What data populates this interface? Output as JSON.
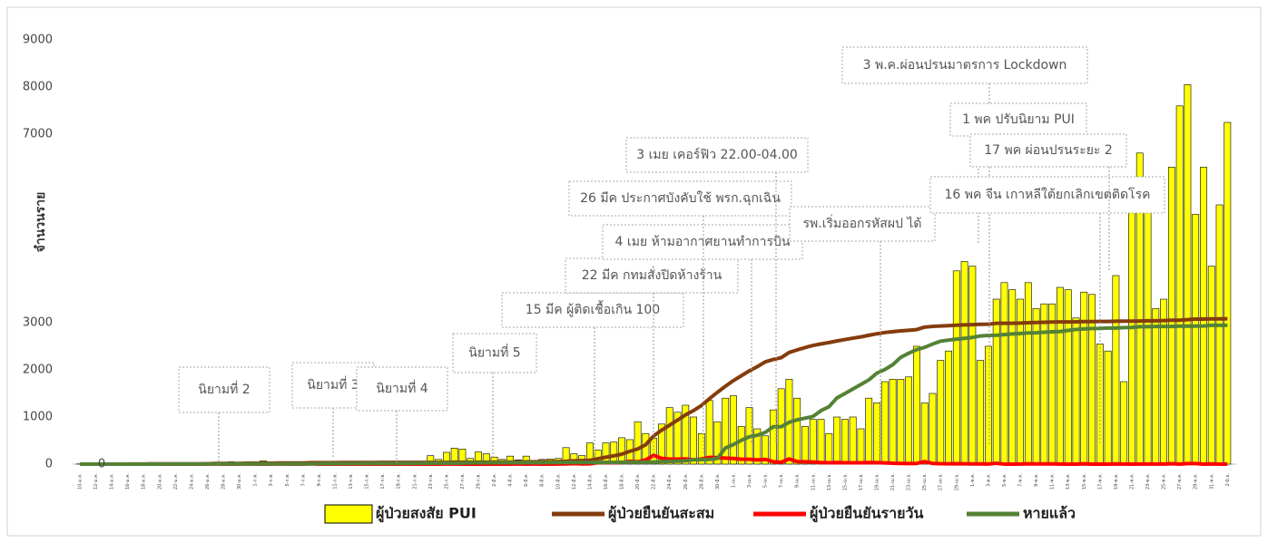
{
  "chart_data": {
    "type": "bar",
    "y_label": "จำนวนราย",
    "ylim": [
      0,
      9000
    ],
    "yticks": [
      0,
      1000,
      2000,
      3000,
      7000,
      8000,
      9000
    ],
    "categories": [
      "10-ม.ค.",
      null,
      "12-ม.ค.",
      null,
      "14-ม.ค.",
      null,
      "16-ม.ค.",
      null,
      "18-ม.ค.",
      null,
      "20-ม.ค.",
      null,
      "22-ม.ค.",
      null,
      "24-ม.ค.",
      null,
      "26-ม.ค.",
      null,
      "28-ม.ค.",
      null,
      "30-ม.ค.",
      null,
      "1-ก.พ.",
      null,
      "3-ก.พ.",
      null,
      "5-ก.พ.",
      null,
      "7-ก.พ.",
      null,
      "9-ก.พ.",
      null,
      "11-ก.พ.",
      null,
      "13-ก.พ.",
      null,
      "15-ก.พ.",
      null,
      "17-ก.พ.",
      null,
      "19-ก.พ.",
      null,
      "21-ก.พ.",
      null,
      "23-ก.พ.",
      null,
      "25-ก.พ.",
      null,
      "27-ก.พ.",
      null,
      "29-ก.พ.",
      null,
      "2-มี.ค.",
      null,
      "4-มี.ค.",
      null,
      "6-มี.ค.",
      null,
      "8-มี.ค.",
      null,
      "10-มี.ค.",
      null,
      "12-มี.ค.",
      null,
      "14-มี.ค.",
      null,
      "16-มี.ค.",
      null,
      "18-มี.ค.",
      null,
      "20-มี.ค.",
      null,
      "22-มี.ค.",
      null,
      "24-มี.ค.",
      null,
      "26-มี.ค.",
      null,
      "28-มี.ค.",
      null,
      "30-มี.ค.",
      null,
      "1-เม.ย.",
      null,
      "3-เม.ย.",
      null,
      "5-เม.ย.",
      null,
      "7-เม.ย.",
      null,
      "9-เม.ย.",
      null,
      "11-เม.ย.",
      null,
      "13-เม.ย.",
      null,
      "15-เม.ย.",
      null,
      "17-เม.ย.",
      null,
      "19-เม.ย.",
      null,
      "21-เม.ย.",
      null,
      "23-เม.ย.",
      null,
      "25-เม.ย.",
      null,
      "27-เม.ย.",
      null,
      "29-เม.ย.",
      null,
      "1-พ.ค.",
      null,
      "3-พ.ค.",
      null,
      "5-พ.ค.",
      null,
      "7-พ.ค.",
      null,
      "9-พ.ค.",
      null,
      "11-พ.ค.",
      null,
      "13-พ.ค.",
      null,
      "15-พ.ค.",
      null,
      "17-พ.ค.",
      null,
      "19-พ.ค.",
      null,
      "21-พ.ค.",
      null,
      "23-พ.ค.",
      null,
      "25-พ.ค.",
      null,
      "27-พ.ค.",
      null,
      "29-พ.ค.",
      null,
      "31-พ.ค.",
      null,
      "2-มิ.ย."
    ],
    "series": [
      {
        "name": "ผู้ป่วยสงสัย PUI",
        "type": "bar",
        "color": "#ffff00",
        "values": [
          5,
          3,
          2,
          4,
          3,
          5,
          6,
          8,
          10,
          12,
          15,
          20,
          25,
          22,
          30,
          20,
          25,
          28,
          15,
          50,
          40,
          30,
          35,
          70,
          30,
          20,
          45,
          20,
          15,
          25,
          20,
          30,
          20,
          15,
          20,
          25,
          20,
          30,
          40,
          50,
          45,
          55,
          60,
          50,
          180,
          100,
          250,
          340,
          320,
          120,
          260,
          220,
          150,
          100,
          170,
          90,
          170,
          60,
          100,
          110,
          120,
          350,
          220,
          180,
          450,
          300,
          450,
          470,
          560,
          520,
          900,
          650,
          550,
          850,
          1200,
          1100,
          1250,
          1000,
          650,
          1350,
          900,
          1400,
          1450,
          800,
          1200,
          750,
          600,
          1150,
          1600,
          1800,
          1400,
          800,
          950,
          950,
          650,
          1000,
          950,
          1000,
          750,
          1400,
          1300,
          1750,
          1800,
          1800,
          1850,
          2500,
          1300,
          1500,
          2200,
          2400,
          4100,
          4300,
          4200,
          2200,
          2500,
          3500,
          3850,
          3700,
          3500,
          3850,
          3300,
          3400,
          3400,
          3750,
          3700,
          3100,
          3650,
          3600,
          2550,
          2400,
          4000,
          1750,
          5700,
          6600,
          5500,
          3300,
          3500,
          6300,
          7600,
          8050,
          5300,
          6300,
          4200,
          5500,
          7250
        ]
      },
      {
        "name": "ผู้ป่วยยืนยันสะสม",
        "type": "line",
        "color": "#843c0c",
        "values": [
          0,
          0,
          0,
          1,
          1,
          1,
          2,
          2,
          2,
          4,
          4,
          4,
          4,
          5,
          5,
          5,
          8,
          14,
          14,
          14,
          14,
          19,
          19,
          19,
          19,
          25,
          25,
          25,
          25,
          32,
          32,
          32,
          32,
          33,
          33,
          33,
          34,
          34,
          35,
          35,
          35,
          35,
          35,
          35,
          35,
          35,
          37,
          40,
          40,
          40,
          42,
          42,
          43,
          43,
          43,
          47,
          48,
          50,
          50,
          50,
          53,
          59,
          70,
          75,
          82,
          114,
          147,
          177,
          212,
          272,
          322,
          411,
          599,
          721,
          827,
          934,
          1045,
          1136,
          1245,
          1388,
          1524,
          1651,
          1771,
          1875,
          1978,
          2067,
          2169,
          2220,
          2258,
          2369,
          2423,
          2473,
          2518,
          2551,
          2579,
          2613,
          2643,
          2672,
          2700,
          2733,
          2765,
          2792,
          2811,
          2826,
          2839,
          2854,
          2907,
          2922,
          2931,
          2938,
          2947,
          2954,
          2960,
          2966,
          2969,
          2987,
          2988,
          2989,
          2992,
          3000,
          3004,
          3009,
          3015,
          3017,
          3017,
          3018,
          3025,
          3025,
          3026,
          3027,
          3031,
          3033,
          3034,
          3037,
          3040,
          3042,
          3045,
          3054,
          3054,
          3065,
          3076,
          3077,
          3081,
          3082,
          3083
        ]
      },
      {
        "name": "ผู้ป่วยยืนยันรายวัน",
        "type": "line",
        "color": "#ff0000",
        "values": [
          0,
          0,
          0,
          1,
          0,
          0,
          1,
          0,
          0,
          2,
          0,
          0,
          0,
          1,
          0,
          0,
          3,
          6,
          0,
          0,
          0,
          5,
          0,
          0,
          0,
          6,
          0,
          0,
          0,
          7,
          0,
          0,
          0,
          1,
          0,
          0,
          1,
          0,
          1,
          0,
          0,
          0,
          0,
          0,
          0,
          0,
          2,
          3,
          0,
          0,
          2,
          0,
          1,
          0,
          0,
          4,
          1,
          2,
          0,
          0,
          3,
          6,
          11,
          5,
          7,
          32,
          33,
          30,
          35,
          60,
          50,
          89,
          188,
          122,
          106,
          107,
          111,
          91,
          109,
          143,
          136,
          127,
          120,
          104,
          103,
          89,
          102,
          51,
          38,
          111,
          54,
          50,
          45,
          33,
          28,
          34,
          30,
          29,
          28,
          33,
          32,
          27,
          19,
          15,
          13,
          15,
          53,
          15,
          9,
          7,
          9,
          7,
          6,
          6,
          3,
          18,
          1,
          1,
          3,
          8,
          4,
          5,
          6,
          2,
          0,
          1,
          7,
          0,
          1,
          1,
          4,
          2,
          1,
          3,
          3,
          2,
          3,
          9,
          0,
          11,
          11,
          1,
          4,
          1,
          1
        ]
      },
      {
        "name": "หายแล้ว",
        "type": "line",
        "color": "#548235",
        "values": [
          0,
          0,
          0,
          0,
          0,
          0,
          0,
          0,
          0,
          0,
          0,
          2,
          2,
          2,
          2,
          2,
          5,
          5,
          5,
          5,
          5,
          5,
          5,
          5,
          5,
          5,
          5,
          5,
          5,
          5,
          10,
          10,
          10,
          10,
          12,
          12,
          14,
          14,
          15,
          15,
          15,
          15,
          17,
          17,
          20,
          21,
          22,
          22,
          22,
          28,
          28,
          28,
          31,
          31,
          31,
          31,
          31,
          31,
          31,
          33,
          33,
          35,
          35,
          35,
          35,
          35,
          35,
          35,
          41,
          42,
          42,
          44,
          44,
          52,
          57,
          62,
          70,
          97,
          97,
          100,
          120,
          342,
          416,
          505,
          581,
          612,
          674,
          793,
          793,
          888,
          940,
          974,
          1013,
          1135,
          1218,
          1405,
          1497,
          1593,
          1689,
          1787,
          1928,
          2007,
          2108,
          2265,
          2352,
          2430,
          2477,
          2547,
          2609,
          2631,
          2652,
          2669,
          2688,
          2719,
          2730,
          2734,
          2747,
          2761,
          2772,
          2784,
          2787,
          2798,
          2808,
          2812,
          2836,
          2857,
          2868,
          2878,
          2881,
          2888,
          2888,
          2897,
          2898,
          2915,
          2916,
          2921,
          2921,
          2921,
          2928,
          2928,
          2929,
          2931,
          2945,
          2945,
          2945
        ]
      }
    ],
    "annotations": [
      "0",
      "นิยามที่ 2",
      "นิยามที่ 3",
      "นิยามที่ 4",
      "นิยามที่ 5",
      "15 มีค ผู้ติดเชื้อเกิน 100",
      "22 มีค กทมสั่งปิดห้างร้าน",
      "4 เมย ห้ามอากาศยานทำการบิน",
      "26 มีค ประกาศบังคับใช้ พรก.ฉุกเฉิน",
      "3 เมย เคอร์ฟิว 22.00-04.00",
      "รพ.เริ่มออกรหัสผป ได้",
      "3 พ.ค.ผ่อนปรนมาตรการ Lockdown",
      "1 พค ปรับนิยาม PUI",
      "16 พค จีน เกาหลีใต้ยกเลิกเขตติดโรค",
      "17 พค ผ่อนปรนระยะ 2"
    ]
  }
}
